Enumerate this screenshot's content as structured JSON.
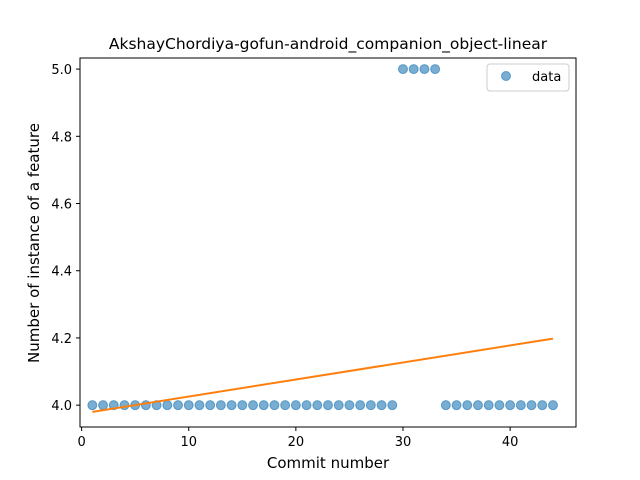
{
  "chart_data": {
    "type": "scatter",
    "title": "AkshayChordiya-gofun-android_companion_object-linear",
    "xlabel": "Commit number",
    "ylabel": "Number of instance of a feature",
    "xlim": [
      -0.15,
      46.15
    ],
    "ylim": [
      3.935,
      5.033
    ],
    "xticks": [
      0,
      10,
      20,
      30,
      40
    ],
    "yticks": [
      4.0,
      4.2,
      4.4,
      4.6,
      4.8,
      5.0
    ],
    "ytick_labels": [
      "4.0",
      "4.2",
      "4.4",
      "4.6",
      "4.8",
      "5.0"
    ],
    "legend_position": "upper right",
    "series": [
      {
        "name": "data",
        "kind": "scatter",
        "color": "#1f77b4",
        "x": [
          1,
          2,
          3,
          4,
          5,
          6,
          7,
          8,
          9,
          10,
          11,
          12,
          13,
          14,
          15,
          16,
          17,
          18,
          19,
          20,
          21,
          22,
          23,
          24,
          25,
          26,
          27,
          28,
          29,
          30,
          31,
          32,
          33,
          34,
          35,
          36,
          37,
          38,
          39,
          40,
          41,
          42,
          43,
          44
        ],
        "y": [
          4,
          4,
          4,
          4,
          4,
          4,
          4,
          4,
          4,
          4,
          4,
          4,
          4,
          4,
          4,
          4,
          4,
          4,
          4,
          4,
          4,
          4,
          4,
          4,
          4,
          4,
          4,
          4,
          4,
          5,
          5,
          5,
          5,
          4,
          4,
          4,
          4,
          4,
          4,
          4,
          4,
          4,
          4,
          4
        ]
      },
      {
        "kind": "line",
        "color": "#ff7f0e",
        "x": [
          1,
          44
        ],
        "y": [
          3.98,
          4.198
        ]
      }
    ]
  }
}
